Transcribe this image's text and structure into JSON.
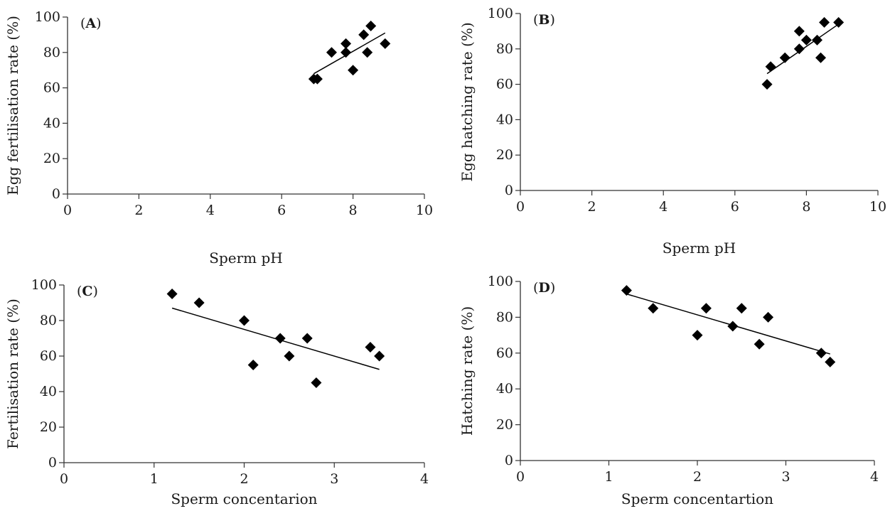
{
  "chart_data": [
    {
      "type": "scatter",
      "panel_label": "A",
      "xlabel": "Sperm pH",
      "ylabel": "Egg fertilisation rate (%)",
      "xlim": [
        0,
        10
      ],
      "ylim": [
        0,
        100
      ],
      "xticks": [
        0,
        2,
        4,
        6,
        8,
        10
      ],
      "yticks": [
        0,
        20,
        40,
        60,
        80,
        100
      ],
      "grid": false,
      "x": [
        6.9,
        7.0,
        7.4,
        7.8,
        7.8,
        8.0,
        8.3,
        8.4,
        8.5,
        8.9
      ],
      "y": [
        65,
        65,
        80,
        85,
        80,
        70,
        90,
        80,
        95,
        85
      ],
      "trendline": {
        "x": [
          6.9,
          8.9
        ],
        "y": [
          68,
          91
        ]
      },
      "marker_color": "#000000"
    },
    {
      "type": "scatter",
      "panel_label": "B",
      "xlabel": "Sperm pH",
      "ylabel": "Egg hatching rate (%)",
      "xlim": [
        0,
        10
      ],
      "ylim": [
        0,
        100
      ],
      "xticks": [
        0,
        2,
        4,
        6,
        8,
        10
      ],
      "yticks": [
        0,
        20,
        40,
        60,
        80,
        100
      ],
      "grid": false,
      "x": [
        6.9,
        7.0,
        7.4,
        7.8,
        7.8,
        8.0,
        8.3,
        8.4,
        8.5,
        8.9
      ],
      "y": [
        60,
        70,
        75,
        90,
        80,
        85,
        85,
        75,
        95,
        95
      ],
      "trendline": {
        "x": [
          6.9,
          8.9
        ],
        "y": [
          66,
          94
        ]
      },
      "marker_color": "#000000"
    },
    {
      "type": "scatter",
      "panel_label": "C",
      "xlabel": "Sperm concentarion",
      "ylabel": "Fertilisation rate (%)",
      "xlim": [
        0,
        4
      ],
      "ylim": [
        0,
        100
      ],
      "xticks": [
        0,
        1,
        2,
        3,
        4
      ],
      "yticks": [
        0,
        20,
        40,
        60,
        80,
        100
      ],
      "grid": false,
      "x": [
        1.2,
        1.5,
        2.0,
        2.1,
        2.4,
        2.5,
        2.7,
        2.8,
        3.4,
        3.5
      ],
      "y": [
        95,
        90,
        80,
        55,
        70,
        60,
        70,
        45,
        65,
        60
      ],
      "trendline": {
        "x": [
          1.2,
          3.5
        ],
        "y": [
          87,
          52.5
        ]
      },
      "marker_color": "#000000"
    },
    {
      "type": "scatter",
      "panel_label": "D",
      "xlabel": "Sperm concentartion",
      "ylabel": "Hatching rate (%)",
      "xlim": [
        0,
        4
      ],
      "ylim": [
        0,
        100
      ],
      "xticks": [
        0,
        1,
        2,
        3,
        4
      ],
      "yticks": [
        0,
        20,
        40,
        60,
        80,
        100
      ],
      "grid": false,
      "x": [
        1.2,
        1.5,
        2.0,
        2.1,
        2.4,
        2.5,
        2.7,
        2.8,
        3.4,
        3.5
      ],
      "y": [
        95,
        85,
        70,
        85,
        75,
        85,
        65,
        80,
        60,
        55
      ],
      "trendline": {
        "x": [
          1.2,
          3.5
        ],
        "y": [
          93,
          59.5
        ]
      },
      "marker_color": "#000000"
    }
  ]
}
